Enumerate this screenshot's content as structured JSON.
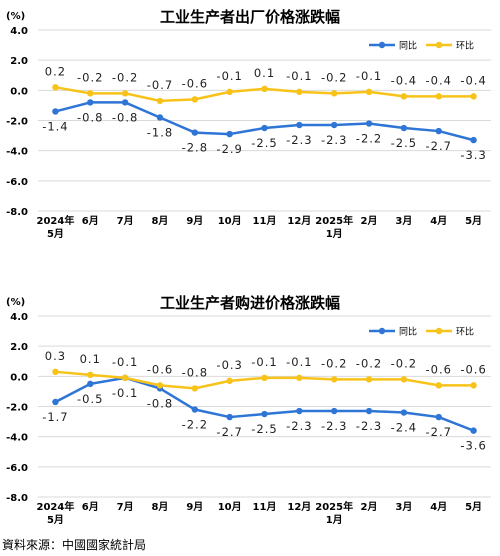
{
  "charts": [
    {
      "chart_data": {
        "type": "line",
        "title": "工业生产者出厂价格涨跌幅",
        "unit": "(%)",
        "categories": [
          "2024年\n5月",
          "6月",
          "7月",
          "8月",
          "9月",
          "10月",
          "11月",
          "12月",
          "2025年\n1月",
          "2月",
          "3月",
          "4月",
          "5月"
        ],
        "ylim": [
          -8.0,
          4.0
        ],
        "yticks": [
          "4.0",
          "2.0",
          "0.0",
          "-2.0",
          "-4.0",
          "-6.0",
          "-8.0"
        ],
        "grid": true,
        "legend_position": "top-right",
        "series": [
          {
            "name": "同比",
            "color": "#2E75D6",
            "values": [
              -1.4,
              -0.8,
              -0.8,
              -1.8,
              -2.8,
              -2.9,
              -2.5,
              -2.3,
              -2.3,
              -2.2,
              -2.5,
              -2.7,
              -3.3
            ],
            "labels": [
              "-1.4",
              "-0.8",
              "-0.8",
              "-1.8",
              "-2.8",
              "-2.9",
              "-2.5",
              "-2.3",
              "-2.3",
              "-2.2",
              "-2.5",
              "-2.7",
              "-3.3"
            ]
          },
          {
            "name": "环比",
            "color": "#F7C319",
            "values": [
              0.2,
              -0.2,
              -0.2,
              -0.7,
              -0.6,
              -0.1,
              0.1,
              -0.1,
              -0.2,
              -0.1,
              -0.4,
              -0.4,
              -0.4
            ],
            "labels": [
              "0.2",
              "-0.2",
              "-0.2",
              "-0.7",
              "-0.6",
              "-0.1",
              "0.1",
              "-0.1",
              "-0.2",
              "-0.1",
              "-0.4",
              "-0.4",
              "-0.4"
            ]
          }
        ]
      }
    },
    {
      "chart_data": {
        "type": "line",
        "title": "工业生产者购进价格涨跌幅",
        "unit": "(%)",
        "categories": [
          "2024年\n5月",
          "6月",
          "7月",
          "8月",
          "9月",
          "10月",
          "11月",
          "12月",
          "2025年\n1月",
          "2月",
          "3月",
          "4月",
          "5月"
        ],
        "ylim": [
          -8.0,
          4.0
        ],
        "yticks": [
          "4.0",
          "2.0",
          "0.0",
          "-2.0",
          "-4.0",
          "-6.0",
          "-8.0"
        ],
        "grid": true,
        "legend_position": "top-right",
        "series": [
          {
            "name": "同比",
            "color": "#2E75D6",
            "values": [
              -1.7,
              -0.5,
              -0.1,
              -0.8,
              -2.2,
              -2.7,
              -2.5,
              -2.3,
              -2.3,
              -2.3,
              -2.4,
              -2.7,
              -3.6
            ],
            "labels": [
              "-1.7",
              "-0.5",
              "-0.1",
              "-0.8",
              "-2.2",
              "-2.7",
              "-2.5",
              "-2.3",
              "-2.3",
              "-2.3",
              "-2.4",
              "-2.7",
              "-3.6"
            ]
          },
          {
            "name": "环比",
            "color": "#F7C319",
            "values": [
              0.3,
              0.1,
              -0.1,
              -0.6,
              -0.8,
              -0.3,
              -0.1,
              -0.1,
              -0.2,
              -0.2,
              -0.2,
              -0.6,
              -0.6
            ],
            "labels": [
              "0.3",
              "0.1",
              "-0.1",
              "-0.6",
              "-0.8",
              "-0.3",
              "-0.1",
              "-0.1",
              "-0.2",
              "-0.2",
              "-0.2",
              "-0.6",
              "-0.6"
            ]
          }
        ]
      }
    }
  ],
  "source": "資料來源：中國國家統計局"
}
